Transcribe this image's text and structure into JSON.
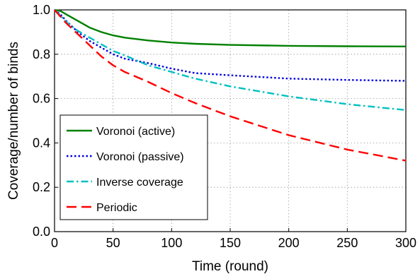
{
  "chart_data": {
    "type": "line",
    "xlabel": "Time (round)",
    "ylabel": "Coverage/number of binds",
    "xlim": [
      0,
      300
    ],
    "ylim": [
      0,
      1.0
    ],
    "xticks": [
      0,
      50,
      100,
      150,
      200,
      250,
      300
    ],
    "xtick_labels": [
      "0",
      "50",
      "100",
      "150",
      "200",
      "250",
      "300"
    ],
    "yticks": [
      0,
      0.2,
      0.4,
      0.6,
      0.8,
      1.0
    ],
    "ytick_labels": [
      "0.0",
      "0.2",
      "0.4",
      "0.6",
      "0.8",
      "1.0"
    ],
    "grid": true,
    "legend_position": "bottom-left",
    "series": [
      {
        "name": "Voronoi (active)",
        "color": "#008000",
        "dash": "solid",
        "x": [
          0,
          5,
          10,
          20,
          30,
          40,
          50,
          60,
          80,
          100,
          120,
          150,
          200,
          250,
          300
        ],
        "y": [
          1.0,
          0.995,
          0.98,
          0.95,
          0.92,
          0.9,
          0.885,
          0.875,
          0.862,
          0.853,
          0.847,
          0.842,
          0.838,
          0.836,
          0.835
        ]
      },
      {
        "name": "Voronoi (passive)",
        "color": "#0000e0",
        "dash": "dot",
        "x": [
          0,
          5,
          10,
          20,
          30,
          40,
          50,
          60,
          80,
          100,
          120,
          150,
          200,
          250,
          300
        ],
        "y": [
          1.0,
          0.98,
          0.95,
          0.9,
          0.86,
          0.83,
          0.8,
          0.78,
          0.76,
          0.735,
          0.715,
          0.705,
          0.69,
          0.684,
          0.68
        ]
      },
      {
        "name": "Inverse coverage",
        "color": "#00c0c0",
        "dash": "dashdot",
        "x": [
          0,
          5,
          10,
          20,
          30,
          40,
          50,
          60,
          80,
          100,
          120,
          150,
          200,
          250,
          300
        ],
        "y": [
          1.0,
          0.975,
          0.945,
          0.905,
          0.875,
          0.845,
          0.815,
          0.795,
          0.75,
          0.72,
          0.69,
          0.655,
          0.61,
          0.575,
          0.548
        ]
      },
      {
        "name": "Periodic",
        "color": "#ff0000",
        "dash": "dash",
        "x": [
          0,
          5,
          10,
          20,
          30,
          40,
          50,
          60,
          80,
          100,
          120,
          150,
          200,
          250,
          300
        ],
        "y": [
          1.0,
          0.97,
          0.94,
          0.89,
          0.84,
          0.79,
          0.75,
          0.72,
          0.675,
          0.625,
          0.58,
          0.52,
          0.435,
          0.37,
          0.32
        ]
      }
    ]
  }
}
